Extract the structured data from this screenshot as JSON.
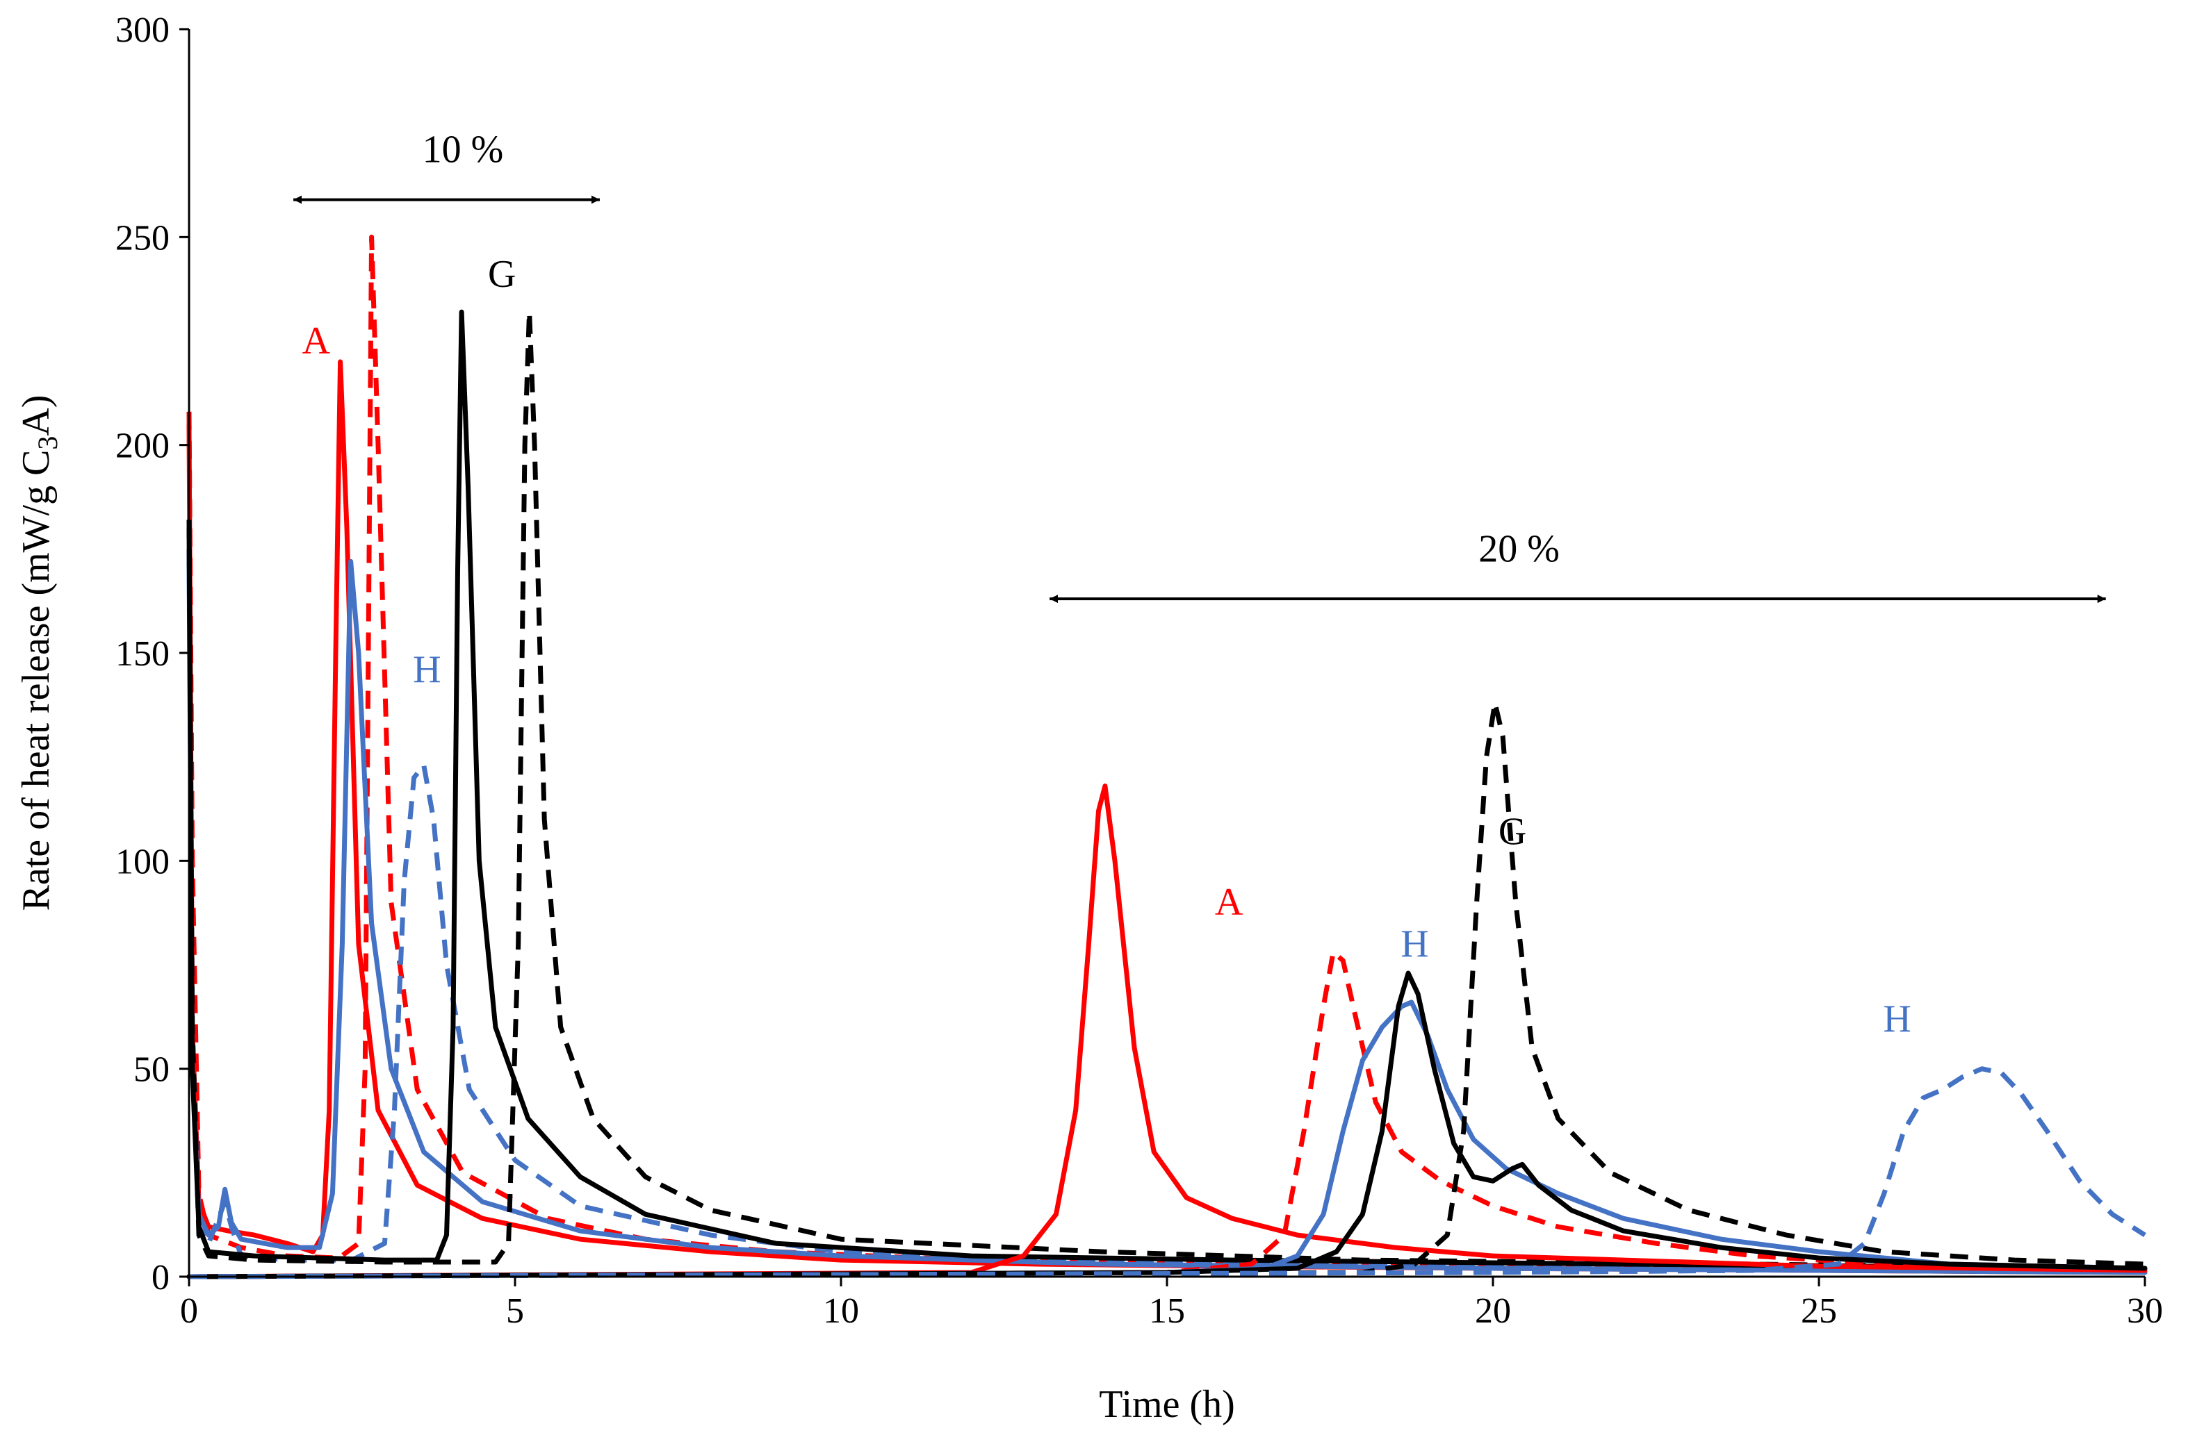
{
  "chart_data": {
    "type": "line",
    "title": "",
    "xlabel": "Time (h)",
    "ylabel_parts": {
      "main": "Rate of heat release (mW/g C",
      "sub": "3",
      "end": "A)"
    },
    "xlim": [
      0,
      30
    ],
    "ylim": [
      0,
      300
    ],
    "xticks": [
      "0",
      "5",
      "10",
      "15",
      "20",
      "25",
      "30"
    ],
    "yticks": [
      "0",
      "50",
      "100",
      "150",
      "200",
      "250",
      "300"
    ],
    "grid": false,
    "colors": {
      "A": "#ff0000",
      "H": "#4472c4",
      "G": "#000000"
    },
    "series": [
      {
        "name": "A 10% (solid)",
        "color": "#ff0000",
        "dash": false,
        "points": [
          [
            0,
            205
          ],
          [
            0.05,
            60
          ],
          [
            0.15,
            18
          ],
          [
            0.3,
            12
          ],
          [
            0.6,
            11
          ],
          [
            1.0,
            10
          ],
          [
            1.5,
            8
          ],
          [
            1.9,
            6
          ],
          [
            2.05,
            10
          ],
          [
            2.15,
            40
          ],
          [
            2.25,
            150
          ],
          [
            2.32,
            220
          ],
          [
            2.42,
            180
          ],
          [
            2.6,
            80
          ],
          [
            2.9,
            40
          ],
          [
            3.5,
            22
          ],
          [
            4.5,
            14
          ],
          [
            6,
            9
          ],
          [
            8,
            6
          ],
          [
            10,
            4
          ],
          [
            13,
            3
          ],
          [
            16,
            2.5
          ],
          [
            20,
            2
          ],
          [
            25,
            1.5
          ],
          [
            30,
            1
          ]
        ]
      },
      {
        "name": "A 10% (dashed)",
        "color": "#ff0000",
        "dash": true,
        "points": [
          [
            0,
            208
          ],
          [
            0.05,
            100
          ],
          [
            0.15,
            20
          ],
          [
            0.3,
            10
          ],
          [
            0.8,
            7
          ],
          [
            1.5,
            5
          ],
          [
            2.3,
            4.5
          ],
          [
            2.6,
            8
          ],
          [
            2.7,
            50
          ],
          [
            2.8,
            250
          ],
          [
            2.9,
            200
          ],
          [
            3.1,
            90
          ],
          [
            3.5,
            45
          ],
          [
            4.2,
            25
          ],
          [
            5.5,
            14
          ],
          [
            7,
            9
          ],
          [
            9,
            6
          ],
          [
            12,
            4
          ],
          [
            16,
            3
          ],
          [
            20,
            2.5
          ],
          [
            25,
            2
          ],
          [
            30,
            1.5
          ]
        ]
      },
      {
        "name": "H 10% (solid)",
        "color": "#4472c4",
        "dash": false,
        "points": [
          [
            0,
            172
          ],
          [
            0.05,
            50
          ],
          [
            0.15,
            15
          ],
          [
            0.3,
            10
          ],
          [
            0.45,
            12
          ],
          [
            0.55,
            21
          ],
          [
            0.65,
            13
          ],
          [
            0.8,
            9
          ],
          [
            1.5,
            7
          ],
          [
            2.0,
            7
          ],
          [
            2.2,
            20
          ],
          [
            2.35,
            80
          ],
          [
            2.48,
            172
          ],
          [
            2.6,
            150
          ],
          [
            2.8,
            85
          ],
          [
            3.1,
            50
          ],
          [
            3.6,
            30
          ],
          [
            4.5,
            18
          ],
          [
            6,
            11
          ],
          [
            8,
            7
          ],
          [
            10,
            5
          ],
          [
            14,
            3
          ],
          [
            20,
            2
          ],
          [
            25,
            1.5
          ],
          [
            30,
            1
          ]
        ]
      },
      {
        "name": "H 10% (dashed)",
        "color": "#4472c4",
        "dash": true,
        "points": [
          [
            0,
            175
          ],
          [
            0.05,
            60
          ],
          [
            0.15,
            12
          ],
          [
            0.3,
            8
          ],
          [
            0.55,
            18
          ],
          [
            0.65,
            12
          ],
          [
            0.8,
            5
          ],
          [
            1.5,
            4
          ],
          [
            2.5,
            4
          ],
          [
            3.0,
            8
          ],
          [
            3.15,
            40
          ],
          [
            3.3,
            95
          ],
          [
            3.45,
            120
          ],
          [
            3.6,
            123
          ],
          [
            3.75,
            110
          ],
          [
            3.95,
            75
          ],
          [
            4.3,
            45
          ],
          [
            5,
            28
          ],
          [
            6,
            17
          ],
          [
            8,
            10
          ],
          [
            10,
            6
          ],
          [
            13,
            4
          ],
          [
            17,
            3
          ],
          [
            22,
            2
          ],
          [
            30,
            1.5
          ]
        ]
      },
      {
        "name": "G 10% (solid)",
        "color": "#000000",
        "dash": false,
        "points": [
          [
            0,
            180
          ],
          [
            0.05,
            50
          ],
          [
            0.15,
            12
          ],
          [
            0.3,
            6
          ],
          [
            1,
            5
          ],
          [
            2,
            4.5
          ],
          [
            3,
            4
          ],
          [
            3.8,
            4
          ],
          [
            3.95,
            10
          ],
          [
            4.05,
            60
          ],
          [
            4.12,
            170
          ],
          [
            4.18,
            232
          ],
          [
            4.28,
            190
          ],
          [
            4.45,
            100
          ],
          [
            4.7,
            60
          ],
          [
            5.2,
            38
          ],
          [
            6,
            24
          ],
          [
            7,
            15
          ],
          [
            9,
            8
          ],
          [
            12,
            5
          ],
          [
            16,
            4
          ],
          [
            22,
            3
          ],
          [
            30,
            2
          ]
        ]
      },
      {
        "name": "G 10% (dashed)",
        "color": "#000000",
        "dash": true,
        "points": [
          [
            0,
            182
          ],
          [
            0.05,
            60
          ],
          [
            0.15,
            10
          ],
          [
            0.3,
            5
          ],
          [
            1,
            4
          ],
          [
            3,
            3.5
          ],
          [
            4.7,
            3.5
          ],
          [
            4.9,
            8
          ],
          [
            5.05,
            80
          ],
          [
            5.15,
            200
          ],
          [
            5.22,
            232
          ],
          [
            5.3,
            200
          ],
          [
            5.45,
            110
          ],
          [
            5.7,
            60
          ],
          [
            6.2,
            38
          ],
          [
            7,
            24
          ],
          [
            8,
            16
          ],
          [
            10,
            9
          ],
          [
            14,
            6
          ],
          [
            18,
            4
          ],
          [
            24,
            3
          ],
          [
            30,
            2
          ]
        ]
      },
      {
        "name": "A 20% (solid)",
        "color": "#ff0000",
        "dash": false,
        "points": [
          [
            0,
            0
          ],
          [
            12,
            1
          ],
          [
            12.8,
            5
          ],
          [
            13.3,
            15
          ],
          [
            13.6,
            40
          ],
          [
            13.8,
            80
          ],
          [
            13.95,
            112
          ],
          [
            14.05,
            118
          ],
          [
            14.2,
            100
          ],
          [
            14.5,
            55
          ],
          [
            14.8,
            30
          ],
          [
            15.3,
            19
          ],
          [
            16,
            14
          ],
          [
            17,
            10
          ],
          [
            18.5,
            7
          ],
          [
            20,
            5
          ],
          [
            22,
            4
          ],
          [
            25,
            2.5
          ],
          [
            30,
            1.5
          ]
        ]
      },
      {
        "name": "A 20% (dashed)",
        "color": "#ff0000",
        "dash": true,
        "points": [
          [
            0,
            0
          ],
          [
            15,
            1
          ],
          [
            16.3,
            3
          ],
          [
            16.8,
            10
          ],
          [
            17.1,
            35
          ],
          [
            17.4,
            65
          ],
          [
            17.55,
            78
          ],
          [
            17.7,
            76
          ],
          [
            17.9,
            62
          ],
          [
            18.2,
            42
          ],
          [
            18.6,
            30
          ],
          [
            19.2,
            23
          ],
          [
            20,
            17
          ],
          [
            21,
            12
          ],
          [
            22.5,
            8
          ],
          [
            24,
            5
          ],
          [
            26,
            3
          ],
          [
            30,
            2
          ]
        ]
      },
      {
        "name": "H 20% (solid)",
        "color": "#4472c4",
        "dash": false,
        "points": [
          [
            0,
            0
          ],
          [
            15,
            1
          ],
          [
            16.5,
            2
          ],
          [
            17,
            5
          ],
          [
            17.4,
            15
          ],
          [
            17.7,
            35
          ],
          [
            18,
            52
          ],
          [
            18.3,
            60
          ],
          [
            18.6,
            65
          ],
          [
            18.75,
            66
          ],
          [
            19,
            58
          ],
          [
            19.3,
            45
          ],
          [
            19.7,
            33
          ],
          [
            20.2,
            26
          ],
          [
            21,
            20
          ],
          [
            22,
            14
          ],
          [
            23.5,
            9
          ],
          [
            25,
            6
          ],
          [
            27,
            3
          ],
          [
            30,
            2
          ]
        ]
      },
      {
        "name": "G 20% (solid)",
        "color": "#000000",
        "dash": false,
        "points": [
          [
            0,
            0
          ],
          [
            15,
            1
          ],
          [
            17,
            2
          ],
          [
            17.6,
            6
          ],
          [
            18,
            15
          ],
          [
            18.3,
            35
          ],
          [
            18.55,
            65
          ],
          [
            18.7,
            73
          ],
          [
            18.85,
            68
          ],
          [
            19.1,
            50
          ],
          [
            19.4,
            32
          ],
          [
            19.7,
            24
          ],
          [
            20,
            23
          ],
          [
            20.3,
            26
          ],
          [
            20.45,
            27
          ],
          [
            20.7,
            22
          ],
          [
            21.2,
            16
          ],
          [
            22,
            11
          ],
          [
            23.5,
            7
          ],
          [
            25,
            4.5
          ],
          [
            27,
            3
          ],
          [
            30,
            2
          ]
        ]
      },
      {
        "name": "G 20% (dashed)",
        "color": "#000000",
        "dash": true,
        "points": [
          [
            0,
            0
          ],
          [
            18,
            1
          ],
          [
            18.8,
            3
          ],
          [
            19.3,
            10
          ],
          [
            19.55,
            35
          ],
          [
            19.75,
            90
          ],
          [
            19.9,
            125
          ],
          [
            20.03,
            138
          ],
          [
            20.15,
            130
          ],
          [
            20.35,
            90
          ],
          [
            20.6,
            55
          ],
          [
            21,
            38
          ],
          [
            21.8,
            25
          ],
          [
            23,
            16
          ],
          [
            24.5,
            10
          ],
          [
            26,
            6
          ],
          [
            28,
            4
          ],
          [
            30,
            3
          ]
        ]
      },
      {
        "name": "H 20% (dashed)",
        "color": "#4472c4",
        "dash": true,
        "points": [
          [
            0,
            0
          ],
          [
            20,
            1
          ],
          [
            24,
            1.5
          ],
          [
            25.3,
            3
          ],
          [
            25.7,
            8
          ],
          [
            26.0,
            20
          ],
          [
            26.3,
            35
          ],
          [
            26.6,
            43
          ],
          [
            26.9,
            45
          ],
          [
            27.2,
            48
          ],
          [
            27.5,
            50
          ],
          [
            27.8,
            49
          ],
          [
            28.1,
            44
          ],
          [
            28.5,
            35
          ],
          [
            29,
            23
          ],
          [
            29.5,
            15
          ],
          [
            30,
            10
          ]
        ]
      }
    ],
    "annotations": [
      {
        "id": "arrow-10",
        "label": "10 %",
        "x_from": 1.6,
        "x_to": 6.3,
        "y": 259,
        "label_x": 4.2,
        "label_y": 268
      },
      {
        "id": "arrow-20",
        "label": "20 %",
        "x_from": 13.2,
        "x_to": 29.4,
        "y": 163,
        "label_x": 20.4,
        "label_y": 172
      }
    ],
    "curve_labels": [
      {
        "text": "A",
        "color": "#ff0000",
        "x": 1.95,
        "y": 222
      },
      {
        "text": "G",
        "color": "#000000",
        "x": 4.8,
        "y": 238
      },
      {
        "text": "H",
        "color": "#4472c4",
        "x": 3.65,
        "y": 143
      },
      {
        "text": "A",
        "color": "#ff0000",
        "x": 15.95,
        "y": 87
      },
      {
        "text": "G",
        "color": "#000000",
        "x": 20.3,
        "y": 104
      },
      {
        "text": "H",
        "color": "#4472c4",
        "x": 18.8,
        "y": 77
      },
      {
        "text": "H",
        "color": "#4472c4",
        "x": 26.2,
        "y": 59
      }
    ]
  }
}
